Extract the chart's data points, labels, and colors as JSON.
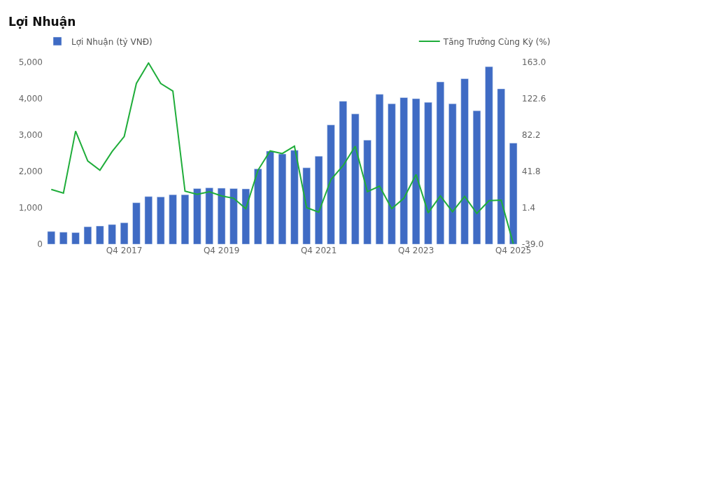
{
  "chart_data": {
    "type": "bar",
    "title": "Lợi Nhuận",
    "categories": [
      null,
      null,
      null,
      null,
      null,
      null,
      "Q4 2017",
      null,
      null,
      null,
      null,
      null,
      null,
      null,
      "Q4 2019",
      null,
      null,
      null,
      null,
      null,
      null,
      null,
      "Q4 2021",
      null,
      null,
      null,
      null,
      null,
      null,
      null,
      "Q4 2023",
      null,
      null,
      null,
      null,
      null,
      null,
      null,
      "Q4 2025"
    ],
    "series": [
      {
        "name": "Lợi Nhuận (tỷ VNĐ)",
        "color": "#3f6bc4",
        "values": [
          350,
          330,
          320,
          480,
          500,
          540,
          590,
          1140,
          1310,
          1300,
          1360,
          1360,
          1530,
          1550,
          1540,
          1530,
          1520,
          2070,
          2560,
          2480,
          2580,
          2100,
          2420,
          3280,
          3930,
          3580,
          2860,
          4120,
          3860,
          4030,
          4000,
          3900,
          4460,
          3860,
          4550,
          3670,
          4880,
          4270,
          2780
        ]
      },
      {
        "name": "Tăng Trưởng Cùng Kỳ (%)",
        "type": "line",
        "axis": "y2",
        "color": "#1fad3a",
        "values": [
          21.8,
          17.7,
          86.6,
          53.4,
          43.1,
          63.8,
          80.6,
          139.5,
          162.2,
          139.5,
          131.1,
          19.8,
          16.4,
          19.3,
          14.6,
          12.0,
          0.4,
          43.1,
          64.6,
          61.7,
          69.8,
          1.6,
          -3.5,
          32.7,
          48.2,
          69.8,
          19.3,
          25.5,
          0.4,
          12.0,
          38.4,
          -4.1,
          14.6,
          -3.0,
          14.1,
          -4.8,
          9.4,
          9.9,
          -38.5
        ]
      }
    ],
    "ylim": [
      0,
      5000
    ],
    "yticks": [
      0,
      {
        "value": 1000,
        "label": "1,000"
      },
      {
        "value": 2000,
        "label": "2,000"
      },
      {
        "value": 3000,
        "label": "3,000"
      },
      {
        "value": 4000,
        "label": "4,000"
      },
      {
        "value": 5000,
        "label": "5,000"
      }
    ],
    "y2lim": [
      -39,
      163
    ],
    "y2ticks": [
      {
        "value": -39,
        "label": "-39.0"
      },
      1.4,
      41.8,
      82.2,
      122.6,
      {
        "value": 163,
        "label": "163.0"
      }
    ],
    "legend": "top",
    "marker": "none",
    "line_style": "solid"
  }
}
